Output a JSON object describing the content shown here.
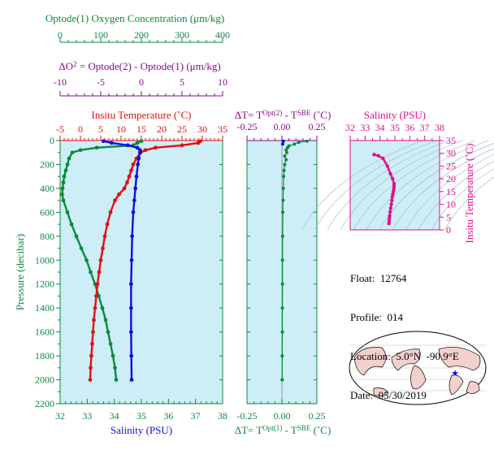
{
  "colors": {
    "green": "#0a8a3c",
    "purple": "#8a0a8a",
    "red": "#e01010",
    "blue": "#1010dd",
    "magenta": "#e0108a",
    "panel_bg": "#cdeef7",
    "land": "#f2d0cc",
    "ocean": "#ffffff"
  },
  "info": {
    "float": "Float:  12764",
    "profile": "Profile:  014",
    "location": "Location:  5.0°N  -90.9°E",
    "date": "Date:  05/30/2019"
  },
  "chart_data": [
    {
      "type": "line",
      "id": "main-profile",
      "axes": {
        "oxygen": {
          "label": "Optode(1) Oxygen Concentration (μm/kg)",
          "ticks": [
            "0",
            "100",
            "200",
            "300",
            "400"
          ],
          "range": [
            0,
            400
          ]
        },
        "delta_o2": {
          "label_parts": [
            "ΔO",
            "2",
            " = Optode(2) - Optode(1)    (μm/kg)"
          ],
          "ticks": [
            "-10",
            "-5",
            "0",
            "5",
            "10"
          ],
          "range": [
            -10,
            10
          ]
        },
        "temperature": {
          "label": "Insitu Temperature (˚C)",
          "ticks": [
            "-5",
            "0",
            "5",
            "10",
            "15",
            "20",
            "25",
            "30",
            "35"
          ],
          "range": [
            -5,
            35
          ]
        },
        "salinity": {
          "label": "Salinity (PSU)",
          "ticks": [
            "32",
            "33",
            "34",
            "35",
            "36",
            "37",
            "38"
          ],
          "range": [
            32,
            38
          ]
        },
        "pressure": {
          "label": "Pressure (decibar)",
          "ticks": [
            "0",
            "200",
            "400",
            "600",
            "800",
            "1000",
            "1200",
            "1400",
            "1600",
            "1800",
            "2000",
            "2200"
          ],
          "range": [
            0,
            2200
          ]
        }
      },
      "series": [
        {
          "name": "Oxygen",
          "color": "#0a8a3c",
          "pressure": [
            5,
            20,
            40,
            60,
            80,
            100,
            150,
            200,
            250,
            300,
            350,
            400,
            450,
            500,
            600,
            700,
            800,
            900,
            1000,
            1100,
            1200,
            1300,
            1400,
            1500,
            1600,
            1700,
            1800,
            1900,
            2000
          ],
          "values": [
            200,
            190,
            180,
            90,
            50,
            30,
            22,
            18,
            14,
            10,
            8,
            6,
            5,
            8,
            18,
            28,
            40,
            52,
            65,
            75,
            86,
            95,
            104,
            112,
            118,
            124,
            130,
            135,
            138
          ]
        },
        {
          "name": "Temperature",
          "color": "#e01010",
          "pressure": [
            5,
            20,
            40,
            60,
            80,
            100,
            150,
            200,
            250,
            300,
            350,
            400,
            450,
            500,
            600,
            700,
            800,
            900,
            1000,
            1100,
            1200,
            1300,
            1400,
            1500,
            1600,
            1700,
            1800,
            1900,
            2000
          ],
          "values": [
            29.5,
            29.0,
            25.0,
            18.5,
            16.0,
            14.8,
            13.8,
            13.0,
            12.5,
            12.0,
            11.5,
            10.8,
            9.5,
            8.5,
            7.4,
            6.6,
            6.0,
            5.5,
            5.0,
            4.6,
            4.2,
            3.9,
            3.6,
            3.3,
            3.1,
            2.9,
            2.7,
            2.5,
            2.4
          ]
        },
        {
          "name": "Salinity",
          "color": "#1010dd",
          "pressure": [
            5,
            20,
            40,
            60,
            80,
            100,
            150,
            200,
            300,
            400,
            500,
            600,
            800,
            1000,
            1200,
            1400,
            1600,
            1800,
            2000
          ],
          "values": [
            33.6,
            33.9,
            34.5,
            34.85,
            34.95,
            34.95,
            34.9,
            34.87,
            34.82,
            34.78,
            34.74,
            34.7,
            34.66,
            34.64,
            34.62,
            34.62,
            34.62,
            34.63,
            34.64
          ]
        }
      ]
    },
    {
      "type": "line",
      "id": "delta-t",
      "axes": {
        "top": {
          "label_parts": [
            "ΔT= T",
            "Opt(2)",
            " - T",
            "SBE",
            " (˚C)"
          ],
          "ticks": [
            "-0.25",
            "0.00",
            "0.25"
          ],
          "range": [
            -0.25,
            0.25
          ]
        },
        "bottom": {
          "label_parts": [
            "ΔT= T",
            "Opt(1)",
            " - T",
            "SBE",
            " (˚C)"
          ],
          "ticks": [
            "-0.25",
            "0.00",
            "0.25"
          ],
          "range": [
            -0.25,
            0.25
          ]
        },
        "pressure": {
          "range": [
            0,
            2200
          ]
        }
      },
      "series": [
        {
          "name": "Optode(2)",
          "color": "#0a8a3c",
          "pressure": [
            5,
            15,
            30,
            45,
            60,
            80,
            100,
            130,
            160,
            200,
            250,
            300,
            400,
            500,
            600,
            800,
            1000,
            1200,
            1400,
            1600,
            1800,
            2000
          ],
          "values": [
            0.18,
            0.12,
            0.09,
            0.05,
            0.04,
            0.03,
            0.035,
            0.02,
            0.03,
            0.02,
            0.015,
            0.012,
            0.01,
            0.008,
            0.006,
            0.005,
            0.004,
            0.004,
            0.003,
            0.003,
            0.002,
            0.002
          ]
        },
        {
          "name": "Optode(1)",
          "color": "#1010dd",
          "pressure": [
            5,
            30
          ],
          "values": [
            0.01,
            0.005
          ]
        }
      ]
    },
    {
      "type": "scatter",
      "id": "ts-diagram",
      "axes": {
        "salinity": {
          "label": "Salinity (PSU)",
          "ticks": [
            "32",
            "33",
            "34",
            "35",
            "36",
            "37",
            "38"
          ],
          "range": [
            32,
            38
          ]
        },
        "temperature": {
          "label": "Insitu Temperature (˚C)",
          "ticks": [
            "0",
            "5",
            "10",
            "15",
            "20",
            "25",
            "30",
            "35"
          ],
          "range": [
            0,
            35
          ]
        }
      },
      "series": [
        {
          "name": "T-S",
          "color": "#e0108a",
          "x": [
            34.6,
            34.62,
            34.63,
            34.65,
            34.68,
            34.72,
            34.76,
            34.8,
            34.83,
            34.86,
            34.9,
            34.93,
            34.95,
            34.95,
            34.85,
            34.7,
            34.5,
            34.2,
            33.9,
            33.6
          ],
          "y": [
            2.5,
            3.5,
            4.5,
            5.5,
            7,
            8.5,
            10,
            11.5,
            13,
            14,
            15,
            16,
            17,
            18,
            20,
            22,
            25,
            28,
            29,
            29.5
          ]
        }
      ]
    }
  ]
}
